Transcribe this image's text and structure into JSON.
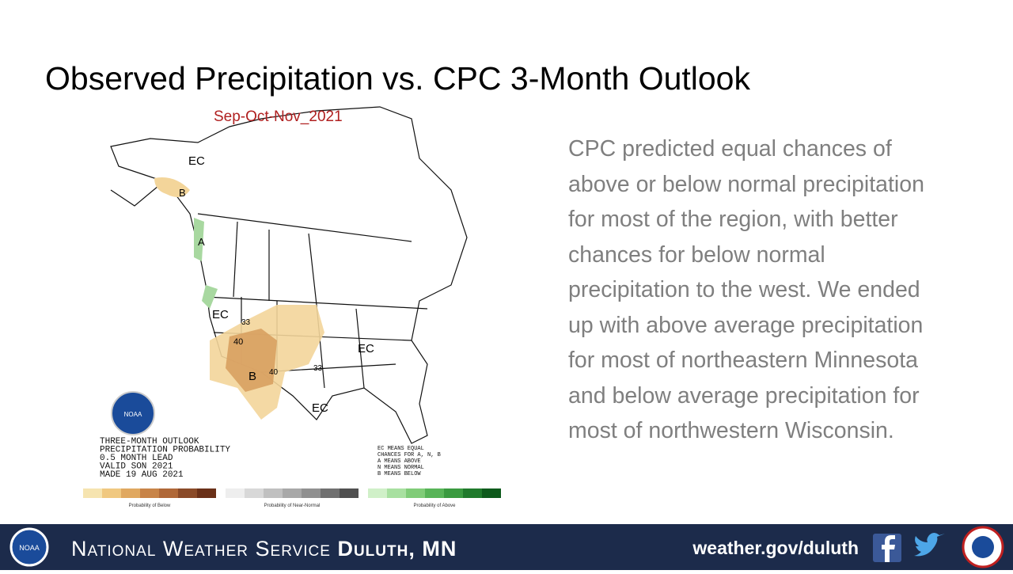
{
  "header": {
    "title": "Observed Precipitation vs. CPC 3-Month Outlook"
  },
  "body": {
    "lines": [
      "CPC predicted equal chances of",
      "above or below normal precipitation",
      "for most of the region, with better",
      "chances for below normal",
      "precipitation to the west. We ended",
      "up with above average precipitation",
      "for most of northeastern Minnesota",
      "and below average precipitation for",
      "most of northwestern Wisconsin."
    ]
  },
  "map": {
    "title": "Sep-Oct-Nov_2021",
    "labels": [
      "EC",
      "B",
      "A",
      "EC",
      "40",
      "33",
      "B",
      "40",
      "33",
      "EC",
      "EC"
    ],
    "logo": "NOAA",
    "info_lines": [
      "THREE-MONTH OUTLOOK",
      "PRECIPITATION PROBABILITY",
      "0.5 MONTH LEAD",
      "VALID SON 2021",
      "MADE 19 AUG 2021"
    ],
    "key_lines": [
      "EC MEANS EQUAL",
      "CHANCES FOR A, N, B",
      "A MEANS ABOVE",
      "N MEANS NORMAL",
      "B MEANS BELOW"
    ],
    "scale_captions": [
      "Probability of Below",
      "Probability of Near-Normal",
      "Probability of Above"
    ]
  },
  "footer": {
    "agency": "National Weather Service",
    "office": "Duluth, MN",
    "url": "weather.gov/duluth",
    "logo": "NOAA"
  }
}
